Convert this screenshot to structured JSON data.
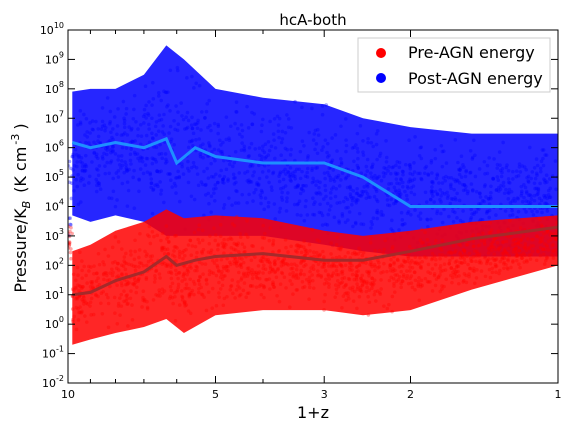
{
  "chart_data": {
    "type": "scatter",
    "title": "hcA-both",
    "xlabel": "1+z",
    "ylabel_main": "Pressure/K",
    "ylabel_sub": "B",
    "ylabel_units": "(K cm",
    "ylabel_exp": "-3",
    "ylabel_close": ")",
    "x_scale": "log",
    "x_reversed": true,
    "xlim": [
      10,
      1
    ],
    "x_ticks": [
      {
        "value": 10,
        "label": "10"
      },
      {
        "value": 5,
        "label": "5"
      },
      {
        "value": 3,
        "label": "3"
      },
      {
        "value": 2,
        "label": "2"
      },
      {
        "value": 1,
        "label": "1"
      }
    ],
    "y_scale": "log",
    "ylim": [
      0.01,
      10000000000
    ],
    "y_ticks": [
      {
        "value": 0.01,
        "base": "10",
        "exp": "-2"
      },
      {
        "value": 0.1,
        "base": "10",
        "exp": "-1"
      },
      {
        "value": 1,
        "base": "10",
        "exp": "0"
      },
      {
        "value": 10,
        "base": "10",
        "exp": "1"
      },
      {
        "value": 100,
        "base": "10",
        "exp": "2"
      },
      {
        "value": 1000,
        "base": "10",
        "exp": "3"
      },
      {
        "value": 10000,
        "base": "10",
        "exp": "4"
      },
      {
        "value": 100000,
        "base": "10",
        "exp": "5"
      },
      {
        "value": 1000000,
        "base": "10",
        "exp": "6"
      },
      {
        "value": 10000000,
        "base": "10",
        "exp": "7"
      },
      {
        "value": 100000000,
        "base": "10",
        "exp": "8"
      },
      {
        "value": 1000000000,
        "base": "10",
        "exp": "9"
      },
      {
        "value": 10000000000,
        "base": "10",
        "exp": "10"
      }
    ],
    "grid": false,
    "legend_position": "top-right",
    "series": [
      {
        "name": "Pre-AGN energy",
        "color": "#ff0000",
        "median_color": "#a52a2a",
        "band": [
          {
            "x": 9.8,
            "low": 0.2,
            "high": 300
          },
          {
            "x": 9.0,
            "low": 0.3,
            "high": 500
          },
          {
            "x": 8.0,
            "low": 0.5,
            "high": 1500
          },
          {
            "x": 7.0,
            "low": 0.8,
            "high": 3000
          },
          {
            "x": 6.3,
            "low": 1.5,
            "high": 8000
          },
          {
            "x": 5.8,
            "low": 0.5,
            "high": 4000
          },
          {
            "x": 5.0,
            "low": 2,
            "high": 5000
          },
          {
            "x": 4.0,
            "low": 3,
            "high": 4000
          },
          {
            "x": 3.0,
            "low": 3,
            "high": 1500
          },
          {
            "x": 2.5,
            "low": 2,
            "high": 1000
          },
          {
            "x": 2.0,
            "low": 3,
            "high": 1500
          },
          {
            "x": 1.5,
            "low": 15,
            "high": 3000
          },
          {
            "x": 1.0,
            "low": 100,
            "high": 5000
          }
        ],
        "median": [
          {
            "x": 9.8,
            "y": 10
          },
          {
            "x": 9.0,
            "y": 12
          },
          {
            "x": 8.0,
            "y": 30
          },
          {
            "x": 7.0,
            "y": 60
          },
          {
            "x": 6.3,
            "y": 200
          },
          {
            "x": 6.0,
            "y": 100
          },
          {
            "x": 5.5,
            "y": 150
          },
          {
            "x": 5.0,
            "y": 200
          },
          {
            "x": 4.0,
            "y": 250
          },
          {
            "x": 3.0,
            "y": 150
          },
          {
            "x": 2.5,
            "y": 150
          },
          {
            "x": 2.0,
            "y": 300
          },
          {
            "x": 1.5,
            "y": 800
          },
          {
            "x": 1.0,
            "y": 2000
          }
        ]
      },
      {
        "name": "Post-AGN energy",
        "color": "#0000ff",
        "median_color": "#1e90ff",
        "band": [
          {
            "x": 9.8,
            "low": 5000,
            "high": 80000000
          },
          {
            "x": 9.0,
            "low": 3000,
            "high": 100000000
          },
          {
            "x": 8.0,
            "low": 5000,
            "high": 100000000
          },
          {
            "x": 7.0,
            "low": 3000,
            "high": 300000000
          },
          {
            "x": 6.3,
            "low": 1000,
            "high": 3000000000
          },
          {
            "x": 5.8,
            "low": 1000,
            "high": 1000000000
          },
          {
            "x": 5.0,
            "low": 1000,
            "high": 100000000
          },
          {
            "x": 4.0,
            "low": 1000,
            "high": 50000000
          },
          {
            "x": 3.0,
            "low": 500,
            "high": 30000000
          },
          {
            "x": 2.5,
            "low": 300,
            "high": 10000000
          },
          {
            "x": 2.0,
            "low": 200,
            "high": 5000000
          },
          {
            "x": 1.5,
            "low": 200,
            "high": 3000000
          },
          {
            "x": 1.0,
            "low": 200,
            "high": 3000000
          }
        ],
        "median": [
          {
            "x": 9.8,
            "y": 1500000
          },
          {
            "x": 9.0,
            "y": 1000000
          },
          {
            "x": 8.0,
            "y": 1500000
          },
          {
            "x": 7.0,
            "y": 1000000
          },
          {
            "x": 6.3,
            "y": 2000000
          },
          {
            "x": 6.0,
            "y": 300000
          },
          {
            "x": 5.5,
            "y": 1000000
          },
          {
            "x": 5.0,
            "y": 500000
          },
          {
            "x": 4.0,
            "y": 300000
          },
          {
            "x": 3.0,
            "y": 300000
          },
          {
            "x": 2.5,
            "y": 100000
          },
          {
            "x": 2.0,
            "y": 10000
          },
          {
            "x": 1.5,
            "y": 10000
          },
          {
            "x": 1.0,
            "y": 10000
          }
        ]
      }
    ]
  }
}
